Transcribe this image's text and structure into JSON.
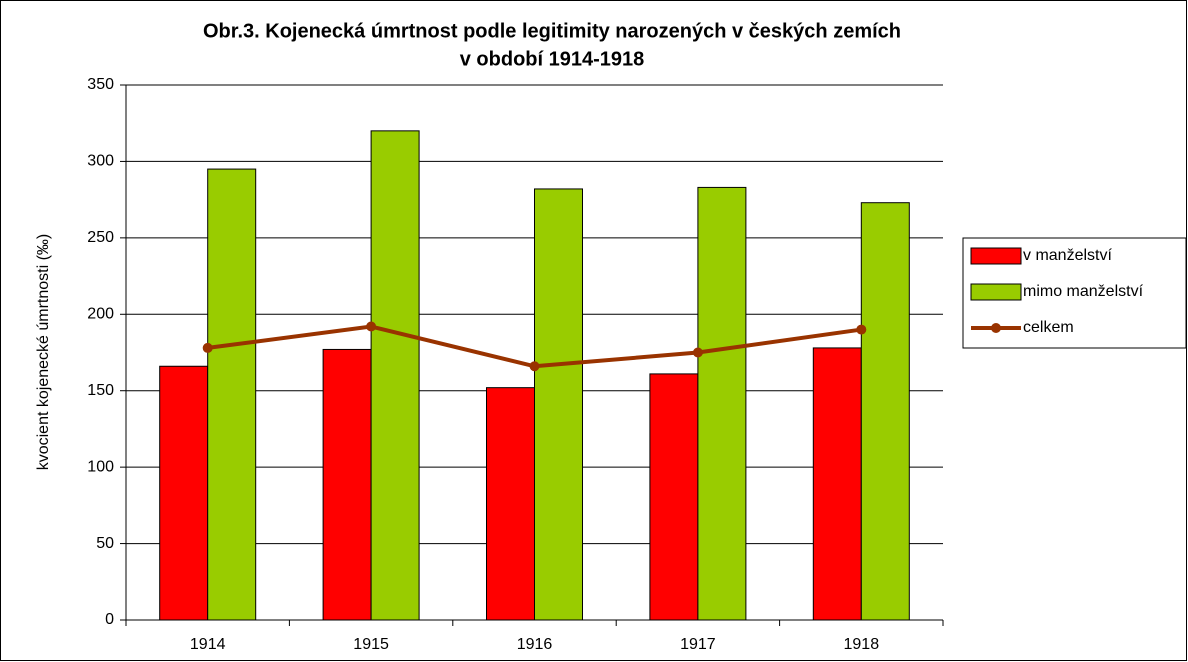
{
  "chart_data": {
    "type": "bar",
    "title": [
      "Obr.3. Kojenecká úmrtnost podle legitimity narozených v českých zemích",
      "v období 1914-1918"
    ],
    "y_label": "kvocient kojenecké úmrtnosti (‰)",
    "categories": [
      "1914",
      "1915",
      "1916",
      "1917",
      "1918"
    ],
    "series": [
      {
        "name": "v manželství",
        "color": "#ff0000",
        "type": "bar",
        "values": [
          166,
          177,
          152,
          161,
          178
        ]
      },
      {
        "name": "mimo manželství",
        "color": "#99cc00",
        "type": "bar",
        "values": [
          295,
          320,
          282,
          283,
          273
        ]
      },
      {
        "name": "celkem",
        "color": "#993300",
        "type": "line",
        "values": [
          178,
          192,
          166,
          175,
          190
        ]
      }
    ],
    "ylim": [
      0,
      350
    ],
    "yticks": [
      0,
      50,
      100,
      150,
      200,
      250,
      300,
      350
    ],
    "grid": true,
    "legend": "right"
  }
}
